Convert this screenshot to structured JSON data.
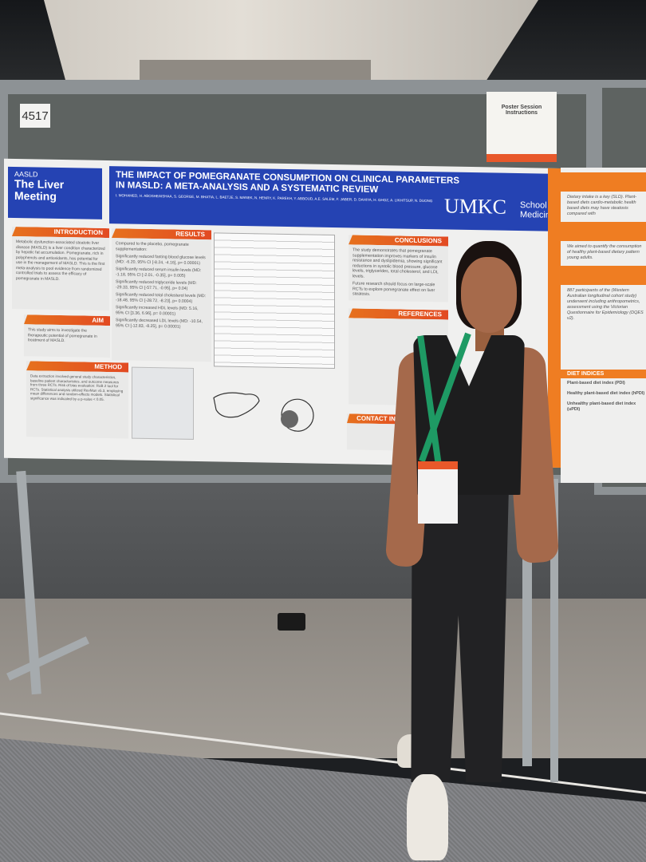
{
  "scene": {
    "description_colors": {
      "poster_header": "#2543b3",
      "accent_orange": "#ef7d22",
      "lanyard": "#1e9a64"
    }
  },
  "board": {
    "number": "4517",
    "instructions": {
      "title": "Poster Session Instructions"
    }
  },
  "poster": {
    "logo": {
      "org": "AASLD",
      "event": "The Liver Meeting"
    },
    "title": "THE IMPACT OF POMEGRANATE CONSUMPTION ON CLINICAL PARAMETERS IN MASLD: A META-ANALYSIS AND A SYSTEMATIC REVIEW",
    "authors": "I. MOHAMED, H. ABOSHEAISHAA, S. GEORGE, M. BHATIA, L. BAETJE, S. MANEK, N. HENRY, K. PAREKH, Y. ABBOUD, A.E. SALEM, F. JABER, D. DAHIYA, H. GHOZ, A. LIKHITSUP, N. DUONG",
    "institution": {
      "name": "UMKC",
      "school": "School of Medicine"
    },
    "sections": {
      "introduction": {
        "heading": "INTRODUCTION",
        "text": "Metabolic dysfunction-associated steatotic liver disease (MASLD) is a liver condition characterized by hepatic fat accumulation. Pomegranate, rich in polyphenols and antioxidants, has potential for use in the management of MASLD. This is the first meta-analysis to pool evidence from randomized controlled trials to assess the efficacy of pomegranate in MASLD."
      },
      "aim": {
        "heading": "AIM",
        "text": "This study aims to investigate the therapeutic potential of pomegranate in treatment of MASLD."
      },
      "method": {
        "heading": "METHOD",
        "text": "Data extraction involved general study characteristics, baseline patient characteristics, and outcome measures from three RCTs. Risk of bias evaluation: RoB 2 tool for RCTs. Statistical analysis utilized RevMan v5.3, employing mean differences and random-effects models. Statistical significance was indicated by a p-value < 0.05."
      },
      "results": {
        "heading": "RESULTS",
        "intro": "Compared to the placebo, pomegranate supplementation:",
        "items": [
          "Significantly reduced fasting blood glucose levels (MD: -6.20, 95% CI [-8.24, -4.16], p= 0.00001)",
          "Significantly reduced serum insulin levels (MD: -1.18, 95% CI [-2.01, -0.35], p= 0.005)",
          "Significantly reduced triglyceride levels (MD: -29.33, 95% CI [-57.71, -0.95], p= 0.04)",
          "Significantly reduced total cholesterol levels (MD: -18.48, 95% CI [-28.72, -8.23], p= 0.0004)",
          "Significantly increased HDL levels (MD: 5.16, 95% CI [3.36, 6.96], p= 0.00001)",
          "Significantly decreased LDL levels (MD: -10.54, 95% CI [-12.83, -8.25], p= 0.00001)"
        ]
      },
      "conclusions": {
        "heading": "CONCLUSIONS",
        "items": [
          "The study demonstrates that pomegranate supplementation improves markers of insulin resistance and dyslipidemia, showing significant reductions in systolic blood pressure, glucose levels, triglycerides, total cholesterol, and LDL levels.",
          "Future research should focus on large-scale RCTs to explore pomegranate effect on liver steatosis."
        ]
      },
      "references": {
        "heading": "REFERENCES"
      },
      "contact": {
        "heading": "CONTACT INFO"
      }
    }
  },
  "neighbor_poster": {
    "text1": "Dietary intake is a key (SLD). Plant-based diets cardio-metabolic health based diets may have steatosis compared with",
    "text2": "We aimed to quantify the consumption of healthy plant-based dietary pattern young adults.",
    "text3": "887 participants of the (Western Australian longitudinal cohort study) underwent including anthropometrics, assessment using the Victorian Questionnaire for Epidemiology (DQES v2).",
    "diet_heading": "DIET INDICES",
    "diet_items": [
      "Plant-based diet index (PDI)",
      "Healthy plant-based diet index (hPDI)",
      "Unhealthy plant-based diet index (uPDI)"
    ]
  }
}
